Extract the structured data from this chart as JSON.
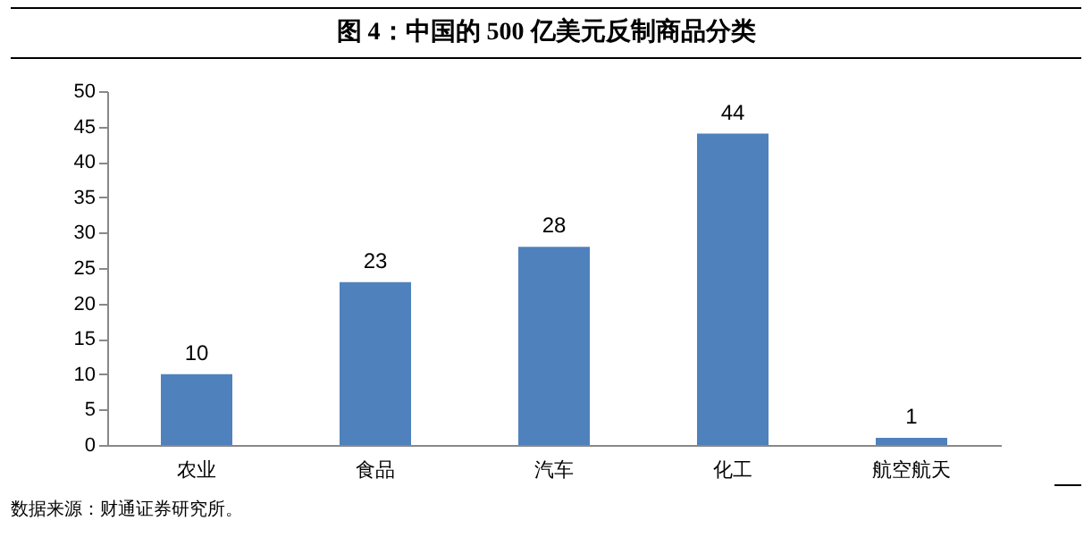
{
  "chart_data": {
    "type": "bar",
    "title": "图 4：中国的 500 亿美元反制商品分类",
    "categories": [
      "农业",
      "食品",
      "汽车",
      "化工",
      "航空航天"
    ],
    "values": [
      10,
      23,
      28,
      44,
      1
    ],
    "color": "#4f81bd",
    "ylim": [
      0,
      50
    ],
    "yticks": [
      0,
      5,
      10,
      15,
      20,
      25,
      30,
      35,
      40,
      45,
      50
    ],
    "grid": false,
    "data_labels": true,
    "annotations": [
      "数据来源：财通证券研究所。"
    ]
  }
}
